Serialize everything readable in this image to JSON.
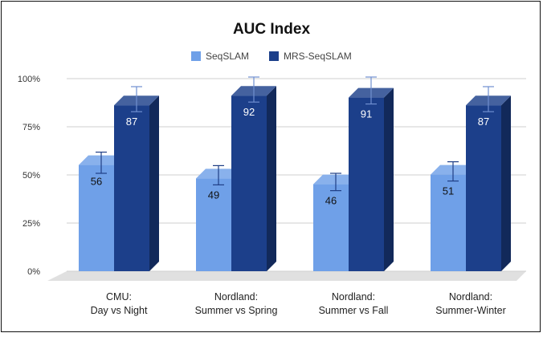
{
  "chart_data": {
    "type": "bar",
    "title": "AUC Index",
    "categories": [
      "CMU:\nDay vs Night",
      "Nordland:\nSummer vs Spring",
      "Nordland:\nSummer vs Fall",
      "Nordland:\nSummer-Winter"
    ],
    "series": [
      {
        "name": "SeqSLAM",
        "values": [
          56,
          49,
          46,
          51
        ],
        "error_low": [
          50,
          44,
          41,
          46
        ],
        "error_high": [
          61,
          54,
          50,
          56
        ],
        "color": "#6fa0e8"
      },
      {
        "name": "MRS-SeqSLAM",
        "values": [
          87,
          92,
          91,
          87
        ],
        "error_low": [
          82,
          87,
          86,
          82
        ],
        "error_high": [
          95,
          100,
          100,
          95
        ],
        "color": "#1c3f8a"
      }
    ],
    "y_ticks": [
      "0%",
      "25%",
      "50%",
      "75%",
      "100%"
    ],
    "ylim": [
      0,
      100
    ],
    "legend_position": "top",
    "grid": true,
    "style": "3d"
  }
}
